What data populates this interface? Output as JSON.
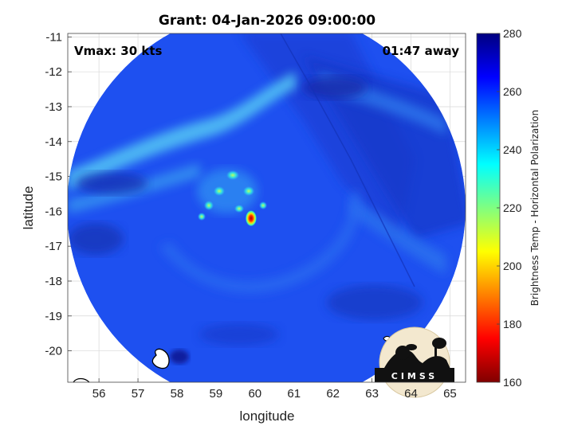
{
  "chart_data": {
    "type": "heatmap",
    "title": "Grant: 04-Jan-2026 09:00:00",
    "xlabel": "longitude",
    "ylabel": "latitude",
    "xlim": [
      55.2,
      65.4
    ],
    "ylim": [
      -20.9,
      -10.9
    ],
    "xticks": [
      56,
      57,
      58,
      59,
      60,
      61,
      62,
      63,
      64,
      65
    ],
    "yticks": [
      -11,
      -12,
      -13,
      -14,
      -15,
      -16,
      -17,
      -18,
      -19,
      -20
    ],
    "grid": true,
    "colorbar": {
      "label": "Brightness Temp - Horizontal Polarization",
      "range": [
        160,
        280
      ],
      "ticks": [
        280,
        260,
        240,
        220,
        200,
        180,
        160
      ],
      "colormap": "jet"
    },
    "swath": {
      "center_lon": 60.35,
      "center_lat": -15.9,
      "radius_deg": 5.65
    },
    "storm_core": {
      "lon": 59.9,
      "lat": -16.2,
      "min_tb": 165
    },
    "annotations": {
      "vmax": "Vmax: 30 kts",
      "offset": "01:47 away"
    },
    "logo": "CIMSS"
  },
  "colors": {
    "background_field": "#1e50f0",
    "cold_core": "#c80000",
    "band": "#55c8f4"
  }
}
